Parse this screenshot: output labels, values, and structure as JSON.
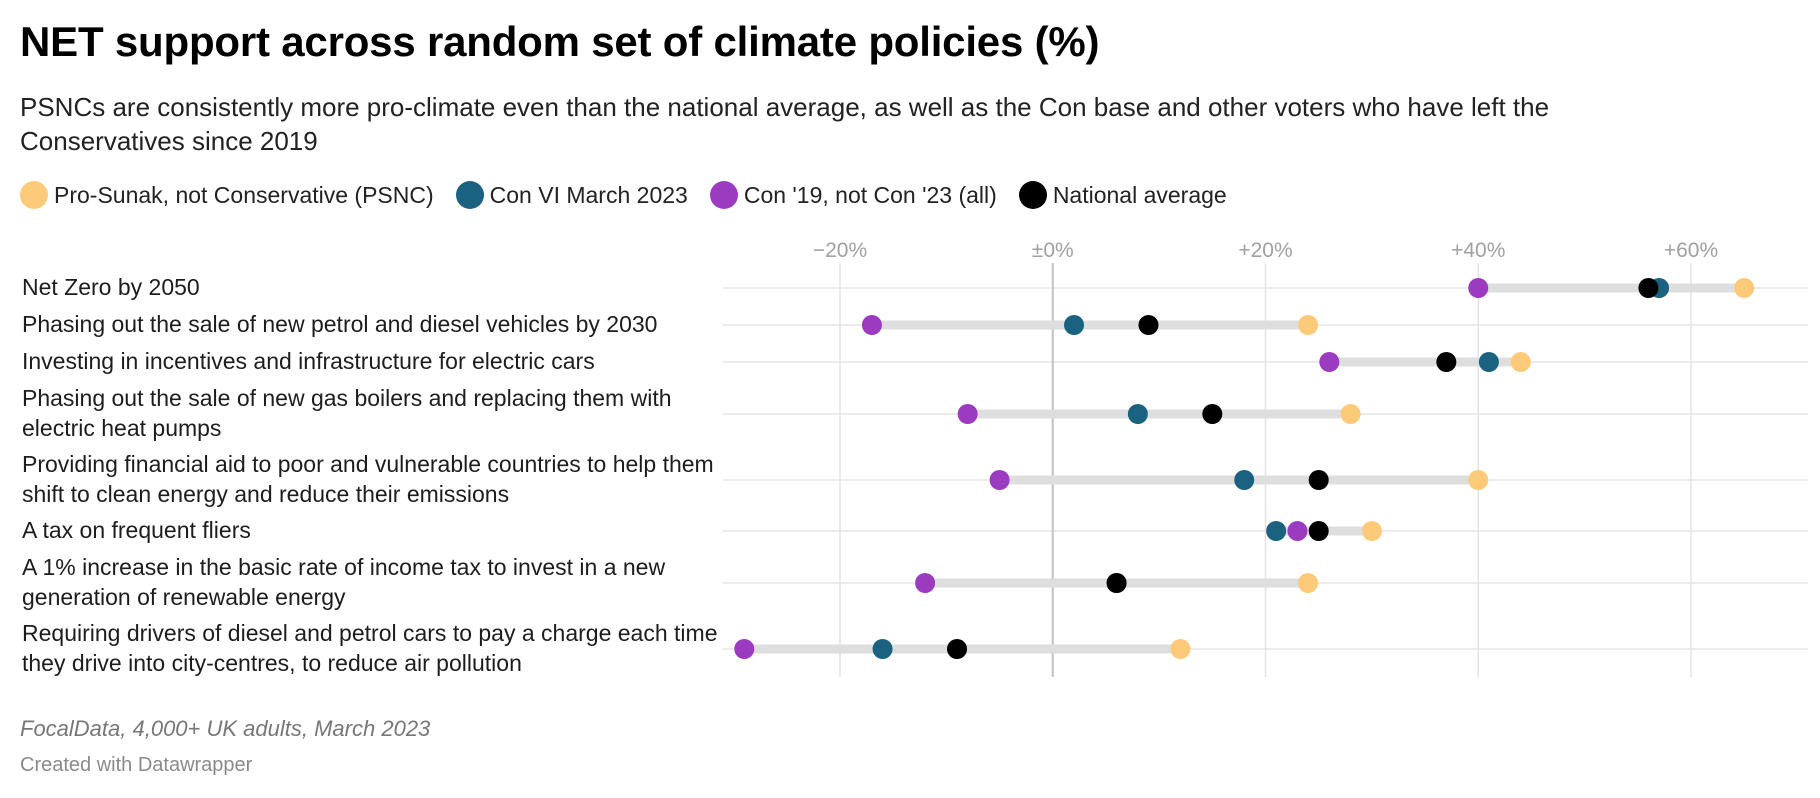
{
  "chart_data": {
    "type": "dot-plot",
    "title": "NET support across random set of climate policies (%)",
    "subtitle": "PSNCs are consistently more pro-climate even than the national average, as well as the Con base and other voters who have left the Conservatives since 2019",
    "xlim": [
      -31,
      71
    ],
    "ticks": [
      {
        "value": -20,
        "label": "−20%"
      },
      {
        "value": 0,
        "label": "±0%"
      },
      {
        "value": 20,
        "label": "+20%"
      },
      {
        "value": 40,
        "label": "+40%"
      },
      {
        "value": 60,
        "label": "+60%"
      }
    ],
    "grid": true,
    "legend_position": "top-left",
    "series": [
      {
        "name": "Pro-Sunak, not Conservative (PSNC)",
        "color": "#fdca7a"
      },
      {
        "name": "Con VI March 2023",
        "color": "#1a627f"
      },
      {
        "name": "Con '19, not Con '23 (all)",
        "color": "#9b3bbf"
      },
      {
        "name": "National average",
        "color": "#000000"
      }
    ],
    "categories": [
      {
        "label": "Net Zero by 2050",
        "values": [
          65,
          57,
          40,
          56
        ]
      },
      {
        "label": "Phasing out the sale of new petrol and diesel vehicles by 2030",
        "values": [
          24,
          2,
          -17,
          9
        ]
      },
      {
        "label": "Investing in incentives and infrastructure for electric cars",
        "values": [
          44,
          41,
          26,
          37
        ]
      },
      {
        "label": "Phasing out the sale of new gas boilers and replacing them with electric heat pumps",
        "values": [
          28,
          8,
          -8,
          15
        ]
      },
      {
        "label": "Providing financial aid to poor and vulnerable countries to help them shift to clean energy and reduce their emissions",
        "values": [
          40,
          18,
          -5,
          25
        ]
      },
      {
        "label": "A tax on frequent fliers",
        "values": [
          30,
          21,
          23,
          25
        ]
      },
      {
        "label": "A 1% increase in the basic rate of income tax to invest in a new generation of renewable energy",
        "values": [
          24,
          6,
          -12,
          6
        ]
      },
      {
        "label": "Requiring drivers of diesel and petrol cars to pay a charge each time they drive into city-centres, to reduce air pollution",
        "values": [
          12,
          -16,
          -29,
          -9
        ]
      }
    ]
  },
  "footer": {
    "source": "FocalData, 4,000+ UK adults, March 2023",
    "credit": "Created with Datawrapper"
  }
}
